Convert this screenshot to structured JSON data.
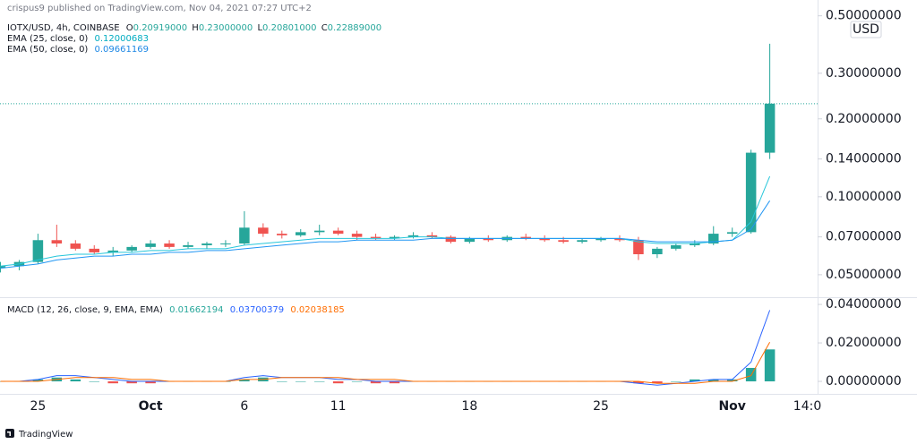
{
  "header": {
    "publisher": "crispus9 published on TradingView.com, Nov 04, 2021 07:27 UTC+2"
  },
  "footer": {
    "brand": "TradingView"
  },
  "chart_data": [
    {
      "type": "candlestick",
      "title": "IOTX/USD, 4h, COINBASE",
      "ohlc_legend": [
        {
          "key": "O",
          "value": "0.20919000"
        },
        {
          "key": "H",
          "value": "0.23000000"
        },
        {
          "key": "L",
          "value": "0.20801000"
        },
        {
          "key": "C",
          "value": "0.22889000"
        }
      ],
      "currency": "USD",
      "categories": [
        null,
        null,
        "25",
        null,
        null,
        null,
        null,
        null,
        "Oct",
        null,
        null,
        null,
        null,
        "6",
        null,
        null,
        null,
        null,
        "11",
        null,
        null,
        null,
        null,
        null,
        null,
        "18",
        null,
        null,
        null,
        null,
        null,
        null,
        "25",
        null,
        null,
        null,
        null,
        null,
        null,
        "Nov",
        null,
        null,
        null,
        "14:0"
      ],
      "open": [
        0.053,
        0.054,
        0.056,
        0.068,
        0.066,
        0.063,
        0.061,
        0.062,
        0.064,
        0.066,
        0.064,
        0.065,
        0.066,
        0.066,
        0.076,
        0.072,
        0.071,
        0.073,
        0.074,
        0.072,
        0.07,
        0.069,
        0.07,
        0.071,
        0.07,
        0.067,
        0.069,
        0.068,
        0.07,
        0.069,
        0.068,
        0.067,
        0.068,
        0.069,
        0.068,
        0.06,
        0.063,
        0.065,
        0.066,
        0.072,
        0.073,
        0.148,
        null,
        null
      ],
      "high": [
        0.056,
        0.057,
        0.072,
        0.078,
        0.068,
        0.065,
        0.064,
        0.065,
        0.068,
        0.068,
        0.067,
        0.067,
        0.068,
        0.088,
        0.079,
        0.074,
        0.075,
        0.078,
        0.076,
        0.074,
        0.072,
        0.071,
        0.073,
        0.073,
        0.071,
        0.07,
        0.071,
        0.071,
        0.072,
        0.071,
        0.07,
        0.069,
        0.07,
        0.071,
        0.07,
        0.064,
        0.066,
        0.068,
        0.077,
        0.076,
        0.152,
        0.39,
        null,
        null
      ],
      "low": [
        0.051,
        0.052,
        0.055,
        0.064,
        0.062,
        0.06,
        0.059,
        0.061,
        0.063,
        0.063,
        0.063,
        0.063,
        0.064,
        0.065,
        0.07,
        0.069,
        0.07,
        0.071,
        0.071,
        0.068,
        0.068,
        0.068,
        0.069,
        0.069,
        0.066,
        0.066,
        0.067,
        0.067,
        0.068,
        0.067,
        0.066,
        0.066,
        0.067,
        0.067,
        0.057,
        0.058,
        0.062,
        0.064,
        0.065,
        0.07,
        0.072,
        0.14,
        null,
        null
      ],
      "close": [
        0.054,
        0.056,
        0.068,
        0.066,
        0.063,
        0.061,
        0.062,
        0.064,
        0.066,
        0.064,
        0.065,
        0.066,
        0.066,
        0.076,
        0.072,
        0.071,
        0.073,
        0.074,
        0.072,
        0.07,
        0.069,
        0.07,
        0.071,
        0.07,
        0.067,
        0.069,
        0.068,
        0.07,
        0.069,
        0.068,
        0.067,
        0.068,
        0.069,
        0.068,
        0.06,
        0.063,
        0.065,
        0.066,
        0.072,
        0.073,
        0.148,
        0.22889,
        null,
        null
      ],
      "up_color": "#26a69a",
      "down_color": "#ef5350",
      "series": [
        {
          "name": "EMA (25, close, 0)",
          "legend_value": "0.12000683",
          "color": "#26c6da",
          "values": [
            0.054,
            0.055,
            0.057,
            0.059,
            0.06,
            0.06,
            0.061,
            0.061,
            0.062,
            0.062,
            0.063,
            0.063,
            0.063,
            0.065,
            0.066,
            0.067,
            0.068,
            0.069,
            0.069,
            0.069,
            0.069,
            0.069,
            0.07,
            0.07,
            0.069,
            0.069,
            0.069,
            0.069,
            0.069,
            0.069,
            0.069,
            0.069,
            0.069,
            0.069,
            0.067,
            0.066,
            0.066,
            0.066,
            0.067,
            0.068,
            0.08,
            0.12000683,
            null,
            null
          ]
        },
        {
          "name": "EMA (50, close, 0)",
          "legend_value": "0.09661169",
          "color": "#2196f3",
          "values": [
            0.053,
            0.054,
            0.055,
            0.057,
            0.058,
            0.059,
            0.059,
            0.06,
            0.06,
            0.061,
            0.061,
            0.062,
            0.062,
            0.063,
            0.064,
            0.065,
            0.066,
            0.067,
            0.067,
            0.068,
            0.068,
            0.068,
            0.068,
            0.069,
            0.069,
            0.069,
            0.069,
            0.069,
            0.069,
            0.069,
            0.069,
            0.069,
            0.069,
            0.069,
            0.068,
            0.067,
            0.067,
            0.067,
            0.067,
            0.068,
            0.075,
            0.09661169,
            null,
            null
          ]
        }
      ],
      "log_scale": true,
      "grid": false,
      "price_line": true,
      "ylim": [
        0.0416,
        0.54
      ],
      "yticks": [
        {
          "value": 0.05,
          "label": "0.05000000"
        },
        {
          "value": 0.07,
          "label": "0.07000000"
        },
        {
          "value": 0.1,
          "label": "0.10000000"
        },
        {
          "value": 0.14,
          "label": "0.14000000"
        },
        {
          "value": 0.2,
          "label": "0.20000000"
        },
        {
          "value": 0.3,
          "label": "0.30000000"
        },
        {
          "value": 0.5,
          "label": "0.50000000"
        }
      ]
    },
    {
      "type": "macd",
      "title": "MACD (12, 26, close, 9, EMA, EMA)",
      "histogram": {
        "legend_value": "0.01662194",
        "color": "#26a69a",
        "negative_color": "#ef5350",
        "values": [
          0,
          0,
          0.001,
          0.002,
          0.001,
          0,
          -0.001,
          -0.001,
          -0.001,
          0,
          0,
          0,
          0,
          0.001,
          0.002,
          0,
          0,
          0,
          -0.001,
          0,
          -0.001,
          -0.001,
          0,
          0,
          0,
          0,
          0,
          0,
          0,
          0,
          0,
          0,
          0,
          0,
          -0.001,
          -0.001,
          0,
          0.001,
          0.001,
          0.001,
          0.007,
          0.01662194,
          null,
          null
        ]
      },
      "macd": {
        "legend_value": "0.03700379",
        "color": "#2962ff",
        "values": [
          0,
          0,
          0.001,
          0.003,
          0.003,
          0.002,
          0.001,
          0,
          0,
          0,
          0,
          0,
          0,
          0.002,
          0.003,
          0.002,
          0.002,
          0.002,
          0.001,
          0.001,
          0,
          0,
          0,
          0,
          0,
          0,
          0,
          0,
          0,
          0,
          0,
          0,
          0,
          0,
          -0.001,
          -0.002,
          -0.001,
          0,
          0.001,
          0.001,
          0.01,
          0.03700379,
          null,
          null
        ]
      },
      "signal": {
        "legend_value": "0.02038185",
        "color": "#ff6d00",
        "values": [
          0,
          0,
          0,
          0.001,
          0.002,
          0.002,
          0.002,
          0.001,
          0.001,
          0,
          0,
          0,
          0,
          0.001,
          0.001,
          0.002,
          0.002,
          0.002,
          0.002,
          0.001,
          0.001,
          0.001,
          0,
          0,
          0,
          0,
          0,
          0,
          0,
          0,
          0,
          0,
          0,
          0,
          0,
          -0.001,
          -0.001,
          -0.001,
          0,
          0,
          0.003,
          0.02038185,
          null,
          null
        ]
      },
      "grid": false,
      "ylim": [
        -0.0065,
        0.0433
      ],
      "yticks": [
        {
          "value": 0,
          "label": "0.00000000"
        },
        {
          "value": 0.02,
          "label": "0.02000000"
        },
        {
          "value": 0.04,
          "label": "0.04000000"
        }
      ]
    }
  ]
}
